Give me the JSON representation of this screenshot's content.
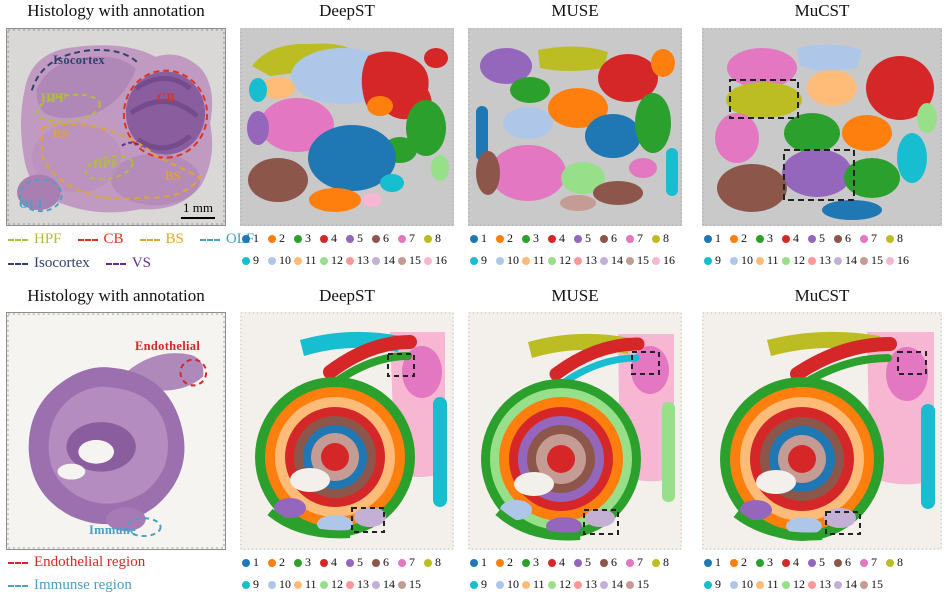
{
  "methods": [
    {
      "name": "DeepST"
    },
    {
      "name": "MUSE"
    },
    {
      "name": "MuCST"
    }
  ],
  "cluster_palette": [
    {
      "id": "1",
      "color": "#1f77b4"
    },
    {
      "id": "2",
      "color": "#ff7f0e"
    },
    {
      "id": "3",
      "color": "#2ca02c"
    },
    {
      "id": "4",
      "color": "#d62728"
    },
    {
      "id": "5",
      "color": "#9467bd"
    },
    {
      "id": "6",
      "color": "#8c564b"
    },
    {
      "id": "7",
      "color": "#e377c2"
    },
    {
      "id": "8",
      "color": "#bcbd22"
    },
    {
      "id": "9",
      "color": "#17becf"
    },
    {
      "id": "10",
      "color": "#aec7e8"
    },
    {
      "id": "11",
      "color": "#ffbb78"
    },
    {
      "id": "12",
      "color": "#98df8a"
    },
    {
      "id": "13",
      "color": "#ff9896"
    },
    {
      "id": "14",
      "color": "#c5b0d5"
    },
    {
      "id": "15",
      "color": "#c49c94"
    },
    {
      "id": "16",
      "color": "#f7b6d2"
    }
  ],
  "section_a": {
    "histology_title": "Histology with annotation",
    "scale_bar_label": "1 mm",
    "region_labels": [
      {
        "text": "Isocortex",
        "color": "#31406e"
      },
      {
        "text": "HPF",
        "color": "#b3bd35"
      },
      {
        "text": "CB",
        "color": "#e0301e"
      },
      {
        "text": "BS",
        "color": "#dfa52e"
      },
      {
        "text": "HPF",
        "color": "#b3bd35"
      },
      {
        "text": "BS",
        "color": "#dfa52e"
      },
      {
        "text": "OLF",
        "color": "#4aa0c4"
      }
    ],
    "annotation_legend": [
      {
        "label": "HPF",
        "color": "#b3bd35"
      },
      {
        "label": "CB",
        "color": "#e0301e"
      },
      {
        "label": "BS",
        "color": "#dfa52e"
      },
      {
        "label": "OLF",
        "color": "#4aa0c4"
      },
      {
        "label": "Isocortex",
        "color": "#31406e"
      },
      {
        "label": "VS",
        "color": "#5f2f8f"
      }
    ],
    "cluster_count": 16
  },
  "section_b": {
    "histology_title": "Histology with annotation",
    "region_labels": [
      {
        "text": "Endothelial",
        "color": "#d62728"
      },
      {
        "text": "Immune",
        "color": "#4aa0c4"
      }
    ],
    "annotation_legend": [
      {
        "label": "Endothelial region",
        "color": "#d62728"
      },
      {
        "label": "Immunse region",
        "color": "#4aa0c4"
      }
    ],
    "cluster_count": 15
  }
}
